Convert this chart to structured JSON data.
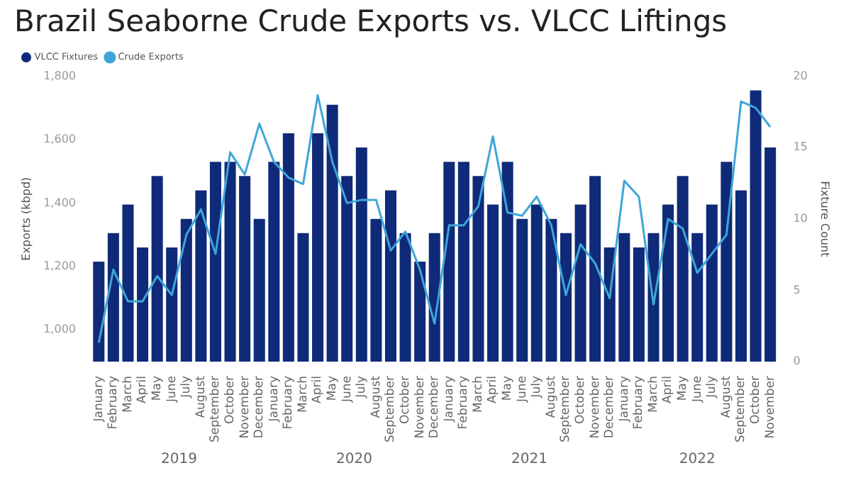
{
  "chart_data": {
    "type": "bar",
    "title": "Brazil Seaborne Crude Exports vs. VLCC Liftings",
    "ylabel": "Exports (kbpd)",
    "y2label": "Fixture Count",
    "categories": [
      "January",
      "February",
      "March",
      "April",
      "May",
      "June",
      "July",
      "August",
      "September",
      "October",
      "November",
      "December",
      "January",
      "February",
      "March",
      "April",
      "May",
      "June",
      "July",
      "August",
      "September",
      "October",
      "November",
      "December",
      "January",
      "February",
      "March",
      "April",
      "May",
      "June",
      "July",
      "August",
      "September",
      "October",
      "November",
      "December",
      "January",
      "February",
      "March",
      "April",
      "May",
      "June",
      "July",
      "August",
      "September",
      "October",
      "November"
    ],
    "series": [
      {
        "name": "VLCC Fixtures",
        "axis": "y2",
        "color": "#0e2a78",
        "values": [
          7,
          9,
          11,
          8,
          13,
          8,
          10,
          12,
          14,
          14,
          13,
          10,
          14,
          16,
          9,
          16,
          18,
          13,
          15,
          10,
          12,
          9,
          7,
          9,
          14,
          14,
          13,
          11,
          14,
          10,
          11,
          10,
          9,
          11,
          13,
          8,
          9,
          8,
          9,
          11,
          13,
          9,
          11,
          14,
          12,
          19,
          15
        ]
      },
      {
        "name": "Crude Exports",
        "type": "line",
        "color": "#3ea6d8",
        "values": [
          960,
          1190,
          1090,
          1090,
          1170,
          1110,
          1300,
          1380,
          1240,
          1560,
          1490,
          1650,
          1530,
          1480,
          1460,
          1740,
          1530,
          1400,
          1410,
          1410,
          1250,
          1310,
          1190,
          1020,
          1330,
          1330,
          1390,
          1610,
          1370,
          1360,
          1420,
          1330,
          1110,
          1270,
          1210,
          1100,
          1470,
          1420,
          1080,
          1350,
          1320,
          1180,
          1240,
          1300,
          1720,
          1700,
          1640
        ]
      }
    ],
    "ylim": [
      900,
      1800
    ],
    "yticks": [
      {
        "value": 1000,
        "label": "1,000"
      },
      {
        "value": 1200,
        "label": "1,200"
      },
      {
        "value": 1400,
        "label": "1,400"
      },
      {
        "value": 1600,
        "label": "1,600"
      },
      {
        "value": 1800,
        "label": "1,800"
      }
    ],
    "y2lim": [
      0,
      20
    ],
    "y2ticks": [
      0,
      5,
      10,
      15,
      20
    ],
    "annotations": [
      "2019",
      "2020",
      "2021",
      "2022"
    ],
    "legend": "top left",
    "grid": false,
    "marker": "none"
  }
}
